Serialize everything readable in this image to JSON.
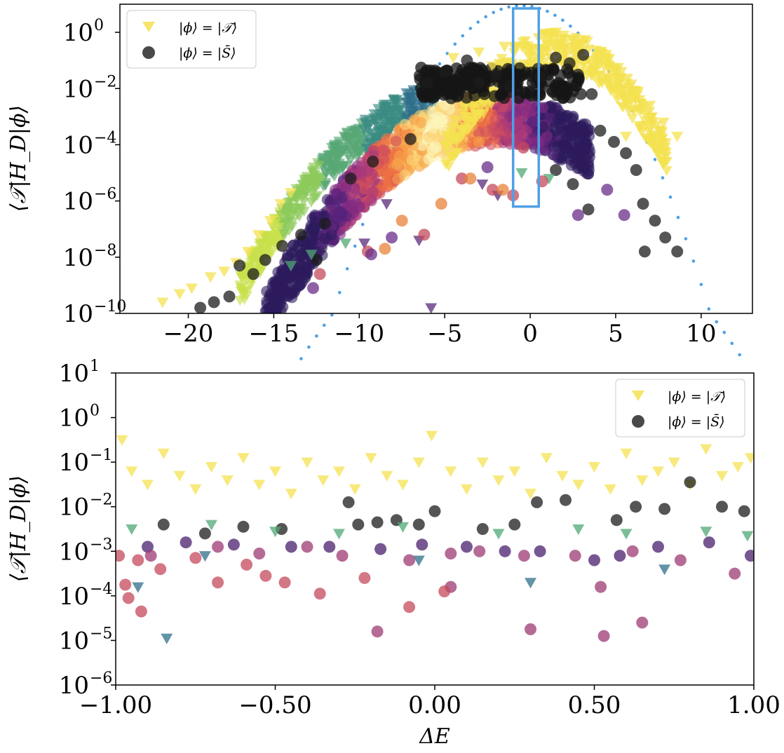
{
  "chart_data": [
    {
      "type": "scatter",
      "panel": "top",
      "ylabel": "⟨𝒯|H_D|ϕ⟩",
      "xlabel": "",
      "xlim": [
        -24,
        13
      ],
      "ylim_log10": [
        -10,
        1
      ],
      "yscale": "log",
      "x_ticks": [
        -20,
        -15,
        -10,
        -5,
        0,
        5,
        10
      ],
      "x_tick_labels": [
        "−20",
        "−15",
        "−10",
        "−5",
        "0",
        "5",
        "10"
      ],
      "y_ticks_log10": [
        0,
        -2,
        -4,
        -6,
        -8,
        -10
      ],
      "legend": {
        "placement": "top-left",
        "entries": [
          "|ϕ⟩ = |𝒯⟩",
          "|ϕ⟩ = |S̄⟩"
        ]
      },
      "highlight_window": {
        "x": [
          -1,
          0.5
        ],
        "log10_y": [
          -6.2,
          0.85
        ],
        "color": "#4ea0e6"
      },
      "envelope_color": "#4ea0e6",
      "series": [
        {
          "name": "|ϕ⟩ = |𝒯⟩",
          "marker": "triangle-down",
          "color": "#f4e150",
          "points": [
            [
              -21.5,
              -9.6
            ],
            [
              -20.5,
              -9.3
            ],
            [
              -19.8,
              -9.1
            ],
            [
              -18.7,
              -8.7
            ],
            [
              -17.9,
              -8.5
            ],
            [
              -17.2,
              -8.2
            ],
            [
              -16.5,
              -7.8
            ],
            [
              -15.9,
              -7.2
            ],
            [
              -15.2,
              -6.7
            ],
            [
              -14.6,
              -6.1
            ],
            [
              -14.0,
              -5.7
            ],
            [
              3.2,
              -1.0
            ],
            [
              3.8,
              -1.3
            ],
            [
              4.5,
              -1.8
            ],
            [
              5.0,
              -1.6
            ],
            [
              5.6,
              -2.1
            ],
            [
              6.4,
              -2.4
            ],
            [
              7.0,
              -2.6
            ],
            [
              7.8,
              -3.2
            ],
            [
              8.6,
              -3.7
            ],
            [
              -3.0,
              -0.7
            ],
            [
              -1.5,
              -0.5
            ],
            [
              0.5,
              -0.6
            ],
            [
              2.0,
              -0.4
            ],
            [
              -4.5,
              -0.9
            ],
            [
              1.2,
              -0.9
            ],
            [
              -2.2,
              -1.2
            ],
            [
              4.1,
              -0.7
            ],
            [
              5.6,
              -3.7
            ]
          ]
        },
        {
          "name": "|ϕ⟩ = |S̄⟩",
          "marker": "circle",
          "color": "#1c1c1c",
          "points": [
            [
              -19.3,
              -9.8
            ],
            [
              -18.5,
              -9.6
            ],
            [
              -17.6,
              -9.4
            ],
            [
              -17.0,
              -8.3
            ],
            [
              -16.2,
              -8.6
            ],
            [
              -15.5,
              -8.1
            ],
            [
              -14.5,
              -7.6
            ],
            [
              -13.4,
              -7.2
            ],
            [
              -12.0,
              -6.8
            ],
            [
              -10.5,
              -5.2
            ],
            [
              -9.2,
              -4.6
            ],
            [
              -7.0,
              -3.8
            ],
            [
              -6.0,
              -1.8
            ],
            [
              -5.0,
              -1.4
            ],
            [
              -3.7,
              -1.0
            ],
            [
              -3.0,
              -1.8
            ],
            [
              -2.0,
              -1.5
            ],
            [
              -1.2,
              -1.9
            ],
            [
              0.6,
              -1.6
            ],
            [
              1.5,
              -0.9
            ],
            [
              2.3,
              -1.1
            ],
            [
              3.1,
              -0.8
            ],
            [
              3.6,
              -2.2
            ],
            [
              4.1,
              -3.5
            ],
            [
              4.9,
              -3.9
            ],
            [
              5.6,
              -4.3
            ],
            [
              6.2,
              -4.9
            ],
            [
              6.6,
              -6.1
            ],
            [
              7.3,
              -6.7
            ],
            [
              7.9,
              -7.3
            ],
            [
              8.6,
              -7.8
            ],
            [
              6.7,
              -7.8
            ],
            [
              1.5,
              -4.9
            ],
            [
              2.5,
              -5.4
            ],
            [
              3.4,
              -6.3
            ],
            [
              -12.5,
              -8.1
            ]
          ]
        },
        {
          "name": "",
          "marker": "triangle-down",
          "color": "#5a2a7a",
          "points": [
            [
              -6.5,
              -7.4
            ],
            [
              -5.8,
              -9.8
            ],
            [
              -2.8,
              -5.4
            ],
            [
              -1.9,
              -5.8
            ],
            [
              -8.4,
              -6.1
            ],
            [
              -9.7,
              -7.5
            ]
          ]
        },
        {
          "name": "",
          "marker": "triangle-down",
          "color": "#4fa874",
          "points": [
            [
              1.1,
              -5.2
            ],
            [
              -0.5,
              -5.0
            ],
            [
              -14.0,
              -8.3
            ],
            [
              -10.8,
              -7.5
            ],
            [
              -12.8,
              -7.9
            ]
          ]
        },
        {
          "name": "",
          "marker": "circle",
          "color": "#c44a5b",
          "points": [
            [
              -12.3,
              -8.6
            ],
            [
              -9.5,
              -7.8
            ],
            [
              -6.2,
              -7.2
            ],
            [
              -0.4,
              -4.1
            ],
            [
              0.7,
              -5.3
            ],
            [
              -1.0,
              -5.8
            ],
            [
              -4.0,
              -5.2
            ],
            [
              -2.2,
              -5.6
            ]
          ]
        },
        {
          "name": "",
          "marker": "circle",
          "color": "#6a2e8a",
          "points": [
            [
              -12.7,
              -9.1
            ],
            [
              -9.3,
              -7.9
            ],
            [
              -8.1,
              -7.3
            ],
            [
              -2.5,
              -4.8
            ],
            [
              2.8,
              -6.5
            ],
            [
              5.5,
              -6.5
            ],
            [
              4.5,
              -5.6
            ]
          ]
        },
        {
          "name": "",
          "marker": "circle",
          "color": "#e8823a",
          "points": [
            [
              -8.5,
              -7.7
            ],
            [
              -7.5,
              -6.7
            ],
            [
              -3.5,
              -5.2
            ],
            [
              -1.6,
              -5.6
            ],
            [
              -5.2,
              -6.1
            ]
          ]
        }
      ]
    },
    {
      "type": "scatter",
      "panel": "bottom",
      "xlabel": "ΔE",
      "ylabel": "⟨𝒯|H_D|ϕ⟩",
      "xlim": [
        -1.0,
        1.0
      ],
      "ylim_log10": [
        -6,
        1
      ],
      "yscale": "log",
      "x_ticks": [
        -1.0,
        -0.5,
        0.0,
        0.5,
        1.0
      ],
      "x_tick_labels": [
        "−1.00",
        "−0.50",
        "0.00",
        "0.50",
        "1.00"
      ],
      "y_ticks_log10": [
        1,
        0,
        -1,
        -2,
        -3,
        -4,
        -5,
        -6
      ],
      "legend": {
        "placement": "top-right",
        "entries": [
          "|ϕ⟩ = |𝒯⟩",
          "|ϕ⟩ = |S̄⟩"
        ]
      },
      "series": [
        {
          "name": "|ϕ⟩ = |𝒯⟩",
          "marker": "triangle-down",
          "color": "#f4e150",
          "points": [
            [
              -0.98,
              -0.5
            ],
            [
              -0.95,
              -1.2
            ],
            [
              -0.9,
              -1.5
            ],
            [
              -0.85,
              -0.8
            ],
            [
              -0.8,
              -1.3
            ],
            [
              -0.75,
              -1.6
            ],
            [
              -0.7,
              -1.1
            ],
            [
              -0.65,
              -1.4
            ],
            [
              -0.6,
              -0.9
            ],
            [
              -0.55,
              -1.5
            ],
            [
              -0.5,
              -1.2
            ],
            [
              -0.45,
              -1.7
            ],
            [
              -0.4,
              -1.0
            ],
            [
              -0.35,
              -1.4
            ],
            [
              -0.3,
              -1.2
            ],
            [
              -0.25,
              -1.6
            ],
            [
              -0.2,
              -0.9
            ],
            [
              -0.15,
              -1.3
            ],
            [
              -0.1,
              -1.5
            ],
            [
              -0.05,
              -1.0
            ],
            [
              -0.01,
              -0.4
            ],
            [
              0.05,
              -1.2
            ],
            [
              0.1,
              -1.6
            ],
            [
              0.15,
              -1.0
            ],
            [
              0.2,
              -1.4
            ],
            [
              0.25,
              -1.2
            ],
            [
              0.3,
              -1.7
            ],
            [
              0.35,
              -0.9
            ],
            [
              0.4,
              -1.3
            ],
            [
              0.45,
              -1.5
            ],
            [
              0.5,
              -1.1
            ],
            [
              0.55,
              -1.6
            ],
            [
              0.6,
              -0.8
            ],
            [
              0.65,
              -1.4
            ],
            [
              0.7,
              -1.2
            ],
            [
              0.75,
              -1.0
            ],
            [
              0.8,
              -1.5
            ],
            [
              0.85,
              -0.7
            ],
            [
              0.9,
              -1.3
            ],
            [
              0.95,
              -1.1
            ],
            [
              0.99,
              -0.9
            ]
          ]
        },
        {
          "name": "|ϕ⟩ = |S̄⟩",
          "marker": "circle",
          "color": "#1c1c1c",
          "points": [
            [
              -0.85,
              -2.4
            ],
            [
              -0.72,
              -2.6
            ],
            [
              -0.6,
              -2.45
            ],
            [
              -0.48,
              -2.5
            ],
            [
              -0.27,
              -1.9
            ],
            [
              -0.24,
              -2.4
            ],
            [
              -0.18,
              -2.35
            ],
            [
              -0.12,
              -2.3
            ],
            [
              -0.05,
              -2.4
            ],
            [
              0.0,
              -2.1
            ],
            [
              0.15,
              -2.5
            ],
            [
              0.25,
              -2.4
            ],
            [
              0.32,
              -1.9
            ],
            [
              0.41,
              -1.85
            ],
            [
              0.57,
              -2.3
            ],
            [
              0.63,
              -2.0
            ],
            [
              0.72,
              -2.05
            ],
            [
              0.8,
              -1.45
            ],
            [
              0.9,
              -2.0
            ],
            [
              0.97,
              -2.1
            ]
          ]
        },
        {
          "name": "",
          "marker": "triangle-down",
          "color": "#4fa874",
          "points": [
            [
              -0.95,
              -2.5
            ],
            [
              -0.7,
              -2.4
            ],
            [
              -0.5,
              -2.55
            ],
            [
              -0.3,
              -2.6
            ],
            [
              -0.1,
              -2.45
            ],
            [
              0.2,
              -2.6
            ],
            [
              0.45,
              -2.5
            ],
            [
              0.6,
              -2.6
            ],
            [
              0.85,
              -2.55
            ],
            [
              0.98,
              -2.65
            ]
          ]
        },
        {
          "name": "",
          "marker": "triangle-down",
          "color": "#2f6f88",
          "points": [
            [
              -0.93,
              -3.8
            ],
            [
              -0.84,
              -4.95
            ],
            [
              -0.72,
              -3.1
            ],
            [
              0.3,
              -3.7
            ],
            [
              0.72,
              -3.4
            ],
            [
              -0.05,
              -3.2
            ]
          ]
        },
        {
          "name": "",
          "marker": "circle",
          "color": "#4a1f6e",
          "points": [
            [
              -0.9,
              -2.9
            ],
            [
              -0.78,
              -2.8
            ],
            [
              -0.63,
              -2.85
            ],
            [
              -0.45,
              -2.9
            ],
            [
              -0.33,
              -2.9
            ],
            [
              -0.17,
              -2.95
            ],
            [
              -0.04,
              -2.85
            ],
            [
              0.1,
              -2.9
            ],
            [
              0.22,
              -3.0
            ],
            [
              0.33,
              -3.0
            ],
            [
              0.5,
              -3.2
            ],
            [
              0.58,
              -3.1
            ],
            [
              0.7,
              -2.9
            ],
            [
              0.86,
              -2.8
            ],
            [
              0.99,
              -3.1
            ]
          ]
        },
        {
          "name": "",
          "marker": "circle",
          "color": "#9c3a72",
          "points": [
            [
              -0.89,
              -3.1
            ],
            [
              -0.68,
              -2.9
            ],
            [
              -0.55,
              -3.05
            ],
            [
              -0.4,
              -2.9
            ],
            [
              -0.29,
              -3.1
            ],
            [
              -0.08,
              -3.2
            ],
            [
              0.05,
              -3.05
            ],
            [
              0.14,
              -3.0
            ],
            [
              0.28,
              -3.1
            ],
            [
              0.44,
              -3.1
            ],
            [
              0.62,
              -3.0
            ],
            [
              0.77,
              -3.2
            ],
            [
              0.94,
              -3.5
            ],
            [
              0.3,
              -4.75
            ],
            [
              0.53,
              -4.9
            ],
            [
              0.65,
              -4.6
            ],
            [
              -0.18,
              -4.8
            ],
            [
              0.05,
              -3.8
            ],
            [
              0.52,
              -3.8
            ]
          ]
        },
        {
          "name": "",
          "marker": "circle",
          "color": "#c44a5b",
          "points": [
            [
              -0.99,
              -3.1
            ],
            [
              -0.96,
              -4.05
            ],
            [
              -0.93,
              -3.2
            ],
            [
              -0.86,
              -3.4
            ],
            [
              -0.75,
              -3.15
            ],
            [
              -0.68,
              -3.7
            ],
            [
              -0.59,
              -3.3
            ],
            [
              -0.53,
              -3.55
            ],
            [
              -0.47,
              -3.7
            ],
            [
              -0.36,
              -3.95
            ],
            [
              -0.22,
              -3.6
            ],
            [
              -0.08,
              -4.25
            ],
            [
              0.03,
              -3.9
            ],
            [
              -0.92,
              -4.35
            ],
            [
              -0.97,
              -3.75
            ]
          ]
        }
      ]
    }
  ]
}
